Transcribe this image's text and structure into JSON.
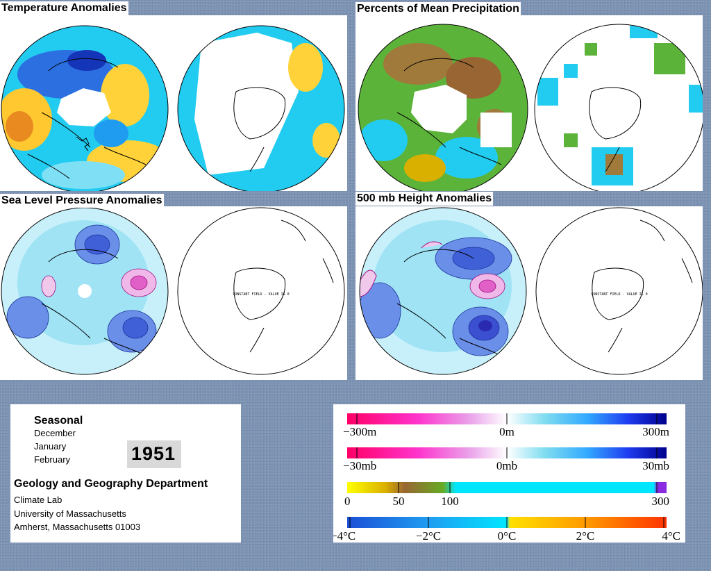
{
  "panels": [
    {
      "id": "temperature",
      "title": "Temperature Anomalies"
    },
    {
      "id": "precipitation",
      "title": "Percents of Mean Precipitation"
    },
    {
      "id": "slp",
      "title": "Sea Level Pressure Anomalies",
      "constant_field": "CONSTANT FIELD - VALUE IS 0"
    },
    {
      "id": "height500",
      "title": "500 mb Height Anomalies",
      "constant_field": "CONSTANT FIELD - VALUE IS 0"
    }
  ],
  "info": {
    "season": "Seasonal",
    "months": [
      "December",
      "January",
      "February"
    ],
    "year": "1951",
    "department": "Geology and Geography Department",
    "lines": [
      "Climate Lab",
      "University of Massachusetts",
      "Amherst, Massachusetts 01003"
    ]
  },
  "legend": [
    {
      "id": "height",
      "labels": [
        "−300m",
        "0m",
        "300m"
      ],
      "colors": [
        "#ff0066",
        "#ff33cc",
        "#e9a0e9",
        "#ffffff",
        "#7fdcf0",
        "#33aaff",
        "#1e3cf0",
        "#00008c"
      ]
    },
    {
      "id": "pressure",
      "labels": [
        "−30mb",
        "0mb",
        "30mb"
      ],
      "colors": [
        "#ff0066",
        "#ff33cc",
        "#e9a0e9",
        "#ffffff",
        "#7fdcf0",
        "#33aaff",
        "#1e3cf0",
        "#00008c"
      ]
    },
    {
      "id": "precip",
      "labels": [
        "0",
        "50",
        "100",
        "300"
      ],
      "colors": [
        "#ffff00",
        "#d9b000",
        "#996633",
        "#66aa22",
        "#00e6ff",
        "#8a2be2"
      ]
    },
    {
      "id": "temp",
      "labels": [
        "−4°C",
        "−2°C",
        "0°C",
        "2°C",
        "4°C"
      ],
      "colors": [
        "#1a4fd6",
        "#1f9bf0",
        "#00e6ff",
        "#ffe000",
        "#ff9900",
        "#ff3300"
      ]
    }
  ],
  "colors": {
    "background": "#7d93b3",
    "temp_cold": "#1e90ff",
    "temp_warm": "#ffd23a",
    "slp_low": "#6a8fe8",
    "slp_high": "#e060c8"
  }
}
